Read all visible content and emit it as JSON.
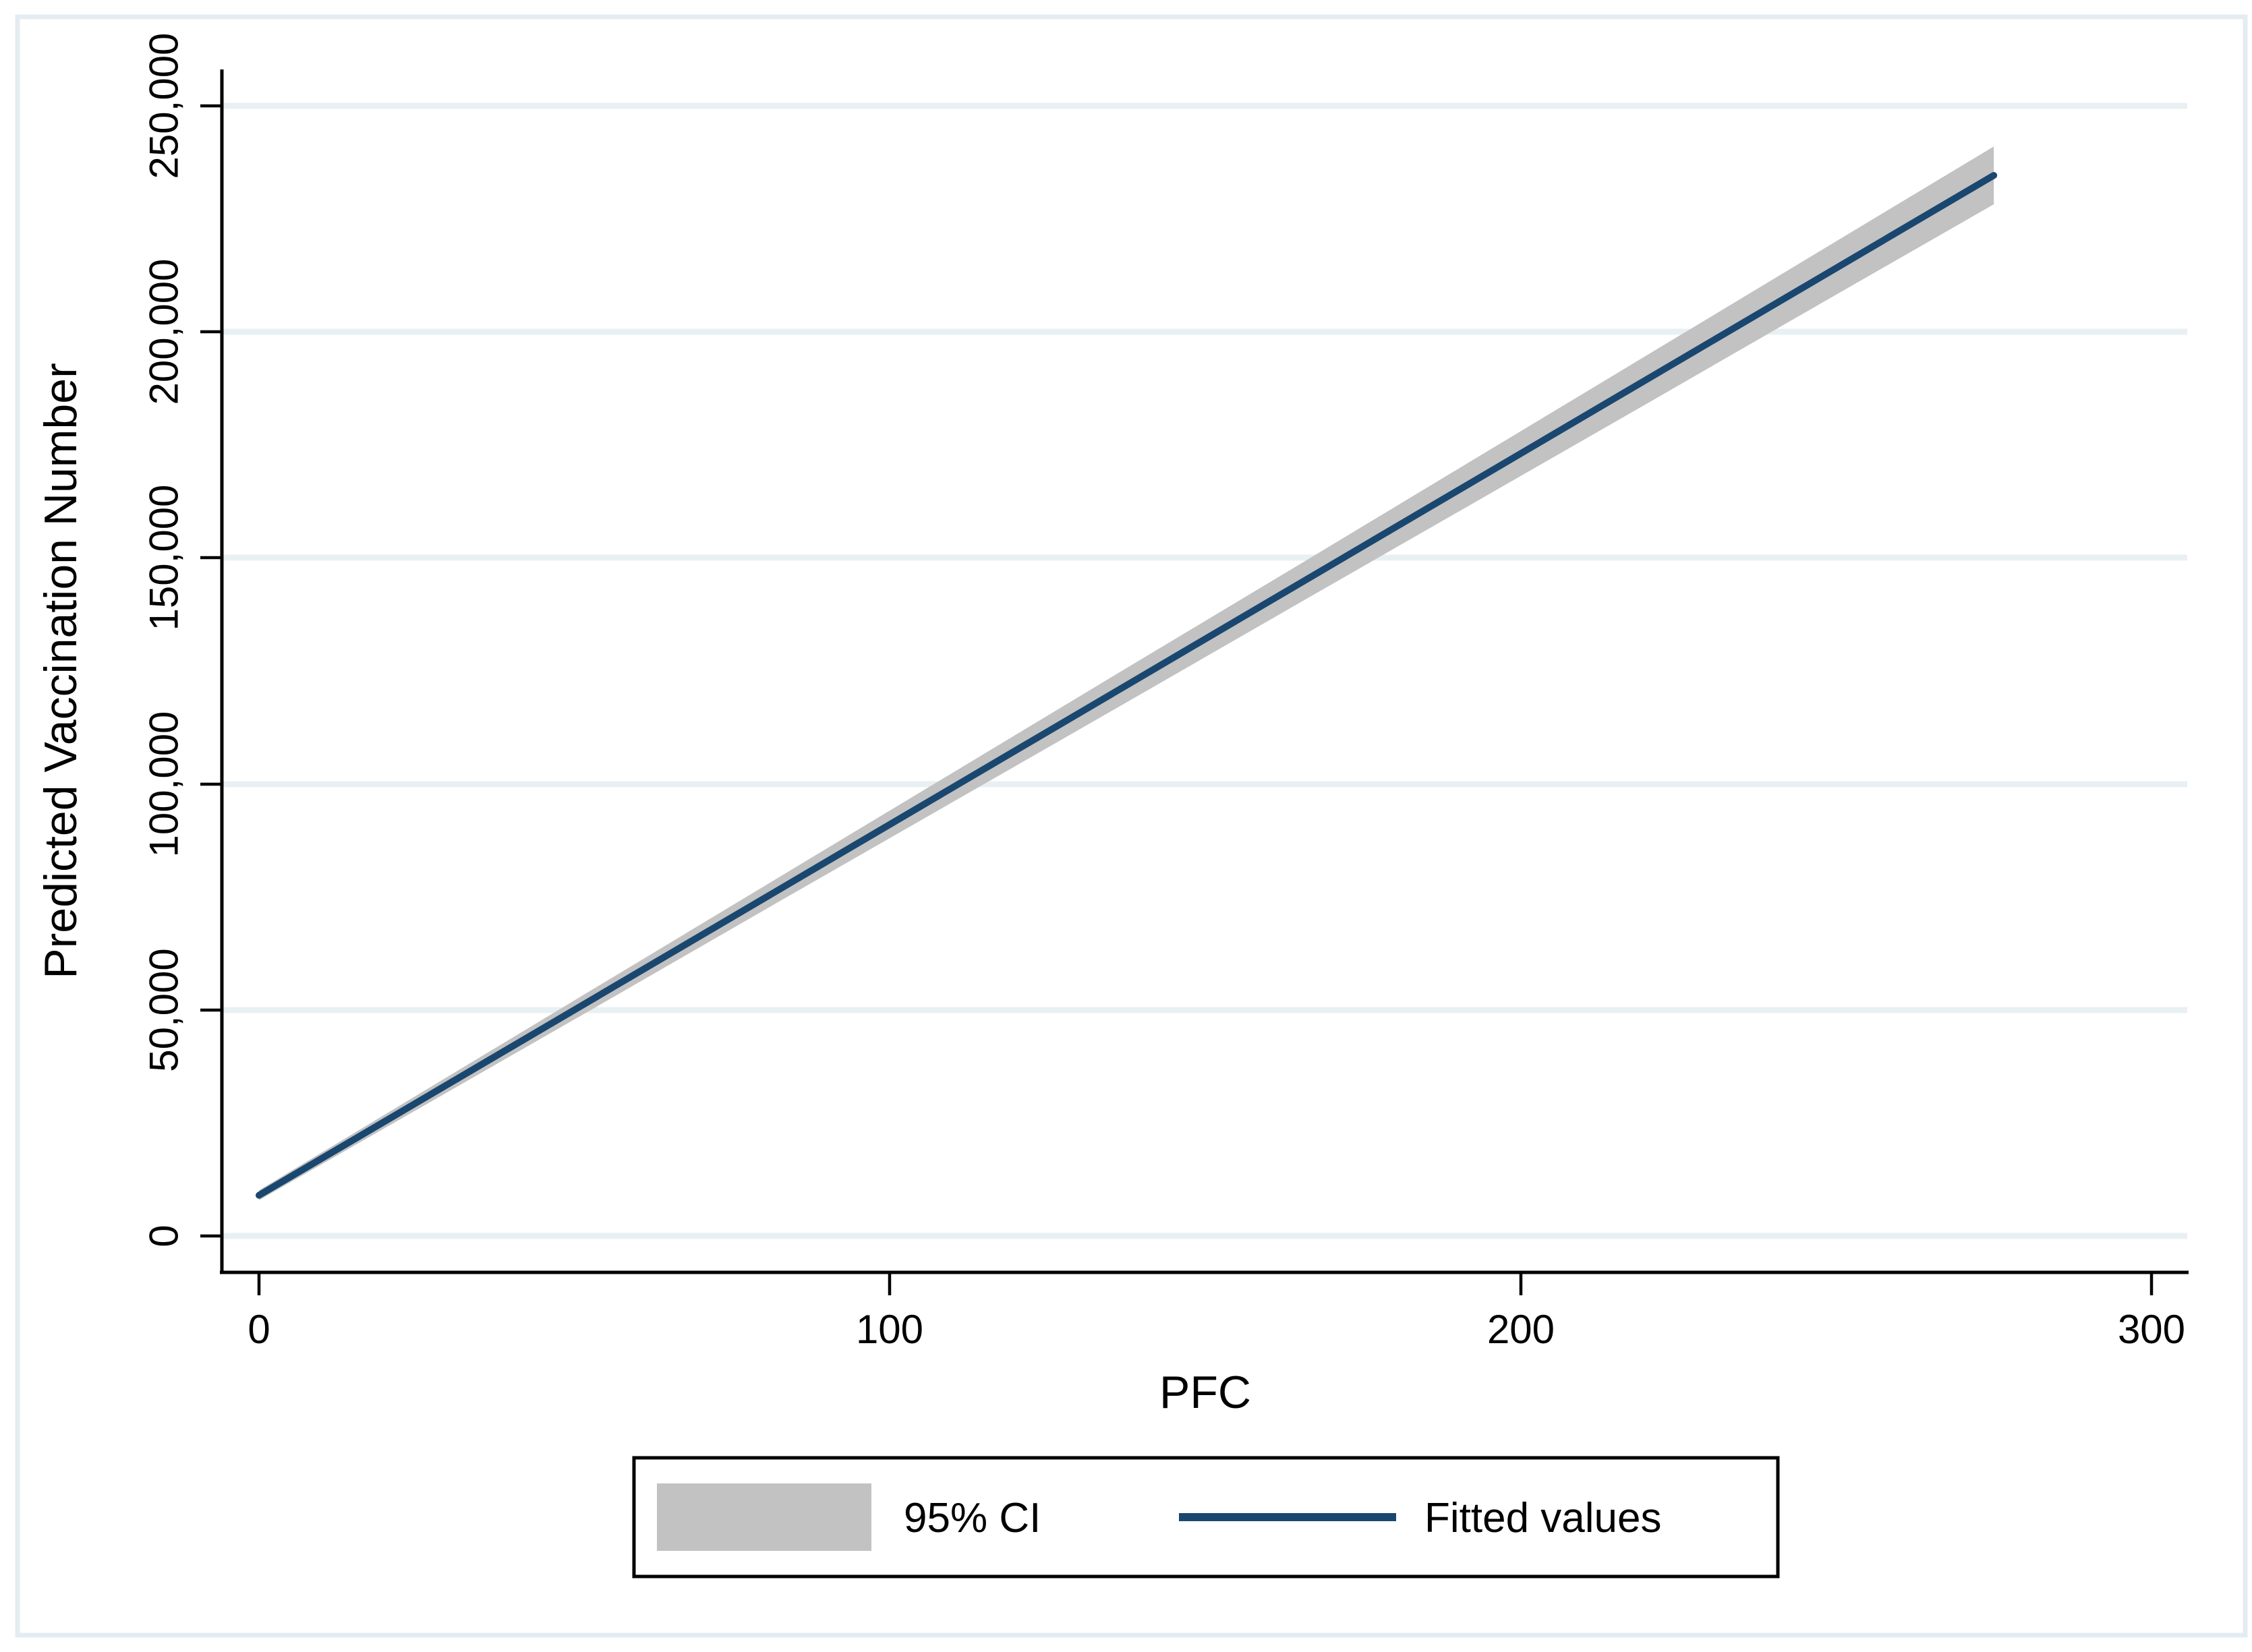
{
  "figure": {
    "background_color": "#ffffff",
    "frame_color": "#e4ecf2",
    "gridline_color": "#e9f0f4",
    "axis_color": "#000000"
  },
  "chart_data": {
    "type": "line",
    "title": "",
    "xlabel": "PFC",
    "ylabel": "Predicted Vaccination Number",
    "xlim": [
      0,
      300
    ],
    "ylim": [
      0,
      250000
    ],
    "grid": "horizontal",
    "x_tick_labels": [
      "0",
      "100",
      "200",
      "300"
    ],
    "x_tick_values": [
      0,
      100,
      200,
      300
    ],
    "y_tick_labels": [
      "0",
      "50,000",
      "100,000",
      "150,000",
      "200,000",
      "250,000"
    ],
    "y_tick_values": [
      0,
      50000,
      100000,
      150000,
      200000,
      250000
    ],
    "series": [
      {
        "name": "95% CI",
        "type": "area",
        "color": "#c2c2c2",
        "x": [
          0,
          27.5,
          55,
          82.5,
          110,
          137.5,
          165,
          192.5,
          220,
          247.5,
          275
        ],
        "upper": [
          10100,
          33200,
          56300,
          79400,
          102500,
          125600,
          148600,
          171700,
          194800,
          217900,
          241000
        ],
        "lower": [
          7900,
          29900,
          51900,
          74000,
          96000,
          118000,
          140100,
          162100,
          184100,
          206200,
          228200
        ]
      },
      {
        "name": "Fitted values",
        "type": "line",
        "color": "#1a476f",
        "x": [
          0,
          275
        ],
        "y": [
          9000,
          234600
        ]
      }
    ],
    "legend": {
      "position": "bottom-center",
      "items": [
        {
          "label": "95% CI",
          "swatch": "area",
          "color": "#c2c2c2"
        },
        {
          "label": "Fitted values",
          "swatch": "line",
          "color": "#1a476f"
        }
      ]
    }
  }
}
